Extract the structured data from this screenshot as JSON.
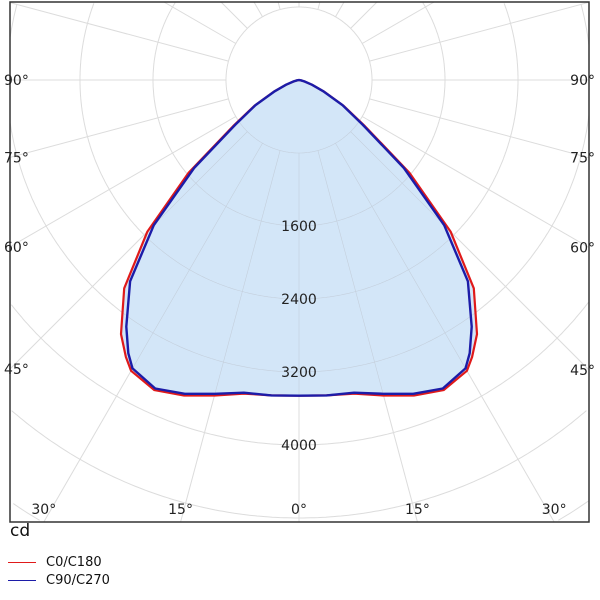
{
  "chart_data": {
    "type": "polar",
    "unit_label": "cd",
    "radial_ticks": [
      800,
      1600,
      2400,
      3200,
      4000
    ],
    "radial_tick_labels": [
      "1600",
      "2400",
      "3200",
      "4000"
    ],
    "angle_labels": [
      {
        "angle": 90,
        "text": "90°",
        "side": "left"
      },
      {
        "angle": 75,
        "text": "75°",
        "side": "left"
      },
      {
        "angle": 60,
        "text": "60°",
        "side": "left"
      },
      {
        "angle": 45,
        "text": "45°",
        "side": "left"
      },
      {
        "angle": 30,
        "text": "30°",
        "side": "left"
      },
      {
        "angle": 15,
        "text": "15°",
        "side": "left"
      },
      {
        "angle": 0,
        "text": "0°",
        "side": "center"
      },
      {
        "angle": 15,
        "text": "15°",
        "side": "right"
      },
      {
        "angle": 30,
        "text": "30°",
        "side": "right"
      },
      {
        "angle": 45,
        "text": "45°",
        "side": "right"
      },
      {
        "angle": 60,
        "text": "60°",
        "side": "right"
      },
      {
        "angle": 75,
        "text": "75°",
        "side": "right"
      },
      {
        "angle": 90,
        "text": "90°",
        "side": "right"
      }
    ],
    "angles": [
      0,
      5,
      10,
      15,
      20,
      25,
      30,
      32,
      35,
      40,
      45,
      50,
      55,
      60,
      65,
      70,
      75,
      80,
      90
    ],
    "series": [
      {
        "name": "C0/C180",
        "color": "#e01a1a",
        "values": [
          3460,
          3470,
          3490,
          3580,
          3680,
          3750,
          3680,
          3580,
          3400,
          2980,
          2350,
          1580,
          880,
          560,
          310,
          150,
          60,
          20,
          0
        ]
      },
      {
        "name": "C90/C270",
        "color": "#1c1ca8",
        "values": [
          3460,
          3470,
          3480,
          3560,
          3660,
          3730,
          3650,
          3530,
          3300,
          2880,
          2250,
          1500,
          850,
          550,
          300,
          150,
          60,
          20,
          0
        ]
      }
    ],
    "fill_color": "#d3e6f8",
    "grid": true,
    "legend_position": "bottom-left"
  }
}
